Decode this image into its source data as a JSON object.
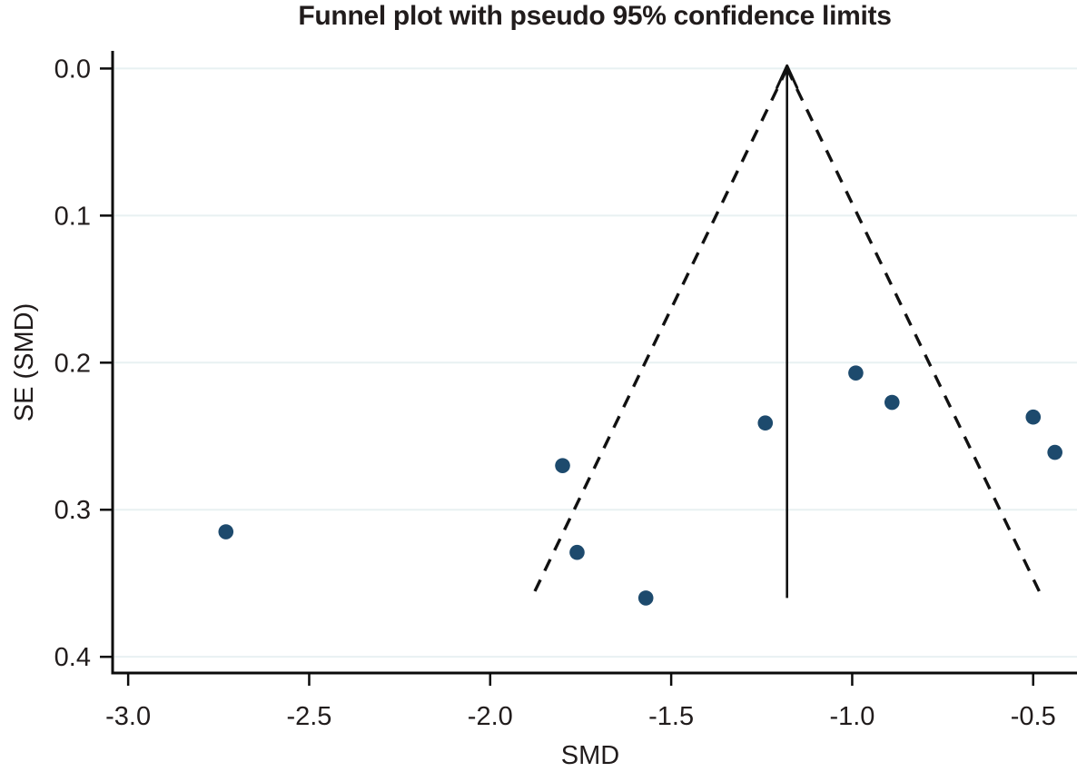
{
  "chart_data": {
    "type": "scatter",
    "title": "Funnel plot with pseudo 95% confidence limits",
    "xlabel": "SMD",
    "ylabel": "SE (SMD)",
    "legend": "none",
    "grid": "horizontal-only",
    "y_axis_inverted": true,
    "xlim": [
      -3.043,
      -0.379
    ],
    "ylim": [
      -0.012,
      0.411
    ],
    "x_ticks": [
      -3.0,
      -2.5,
      -2.0,
      -1.5,
      -1.0,
      -0.5
    ],
    "x_tick_labels": [
      "-3.0",
      "-2.5",
      "-2.0",
      "-1.5",
      "-1.0",
      "-0.5"
    ],
    "y_ticks": [
      0.0,
      0.1,
      0.2,
      0.3,
      0.4
    ],
    "y_tick_labels": [
      "0.0",
      "0.1",
      "0.2",
      "0.3",
      "0.4"
    ],
    "points": [
      {
        "smd": -2.73,
        "se": 0.315
      },
      {
        "smd": -1.8,
        "se": 0.27
      },
      {
        "smd": -1.76,
        "se": 0.329
      },
      {
        "smd": -1.57,
        "se": 0.36
      },
      {
        "smd": -1.24,
        "se": 0.241
      },
      {
        "smd": -0.99,
        "se": 0.207
      },
      {
        "smd": -0.89,
        "se": 0.227
      },
      {
        "smd": -0.5,
        "se": 0.237
      },
      {
        "smd": -0.44,
        "se": 0.261
      }
    ],
    "center_line": {
      "smd": -1.18,
      "se_top": 0.0,
      "se_bottom": 0.36,
      "arrow_at_top": true
    },
    "pseudo_ci_funnel": {
      "apex_smd": -1.18,
      "apex_se": 0.0,
      "z": 1.96,
      "max_se": 0.36,
      "style": "dashed"
    },
    "colors": {
      "marker": "#1d4a6d",
      "gridline": "#e8f1f2",
      "axis": "#0b0b0b",
      "funnel": "#111111",
      "text": "#211c1c",
      "background": "#ffffff"
    }
  }
}
